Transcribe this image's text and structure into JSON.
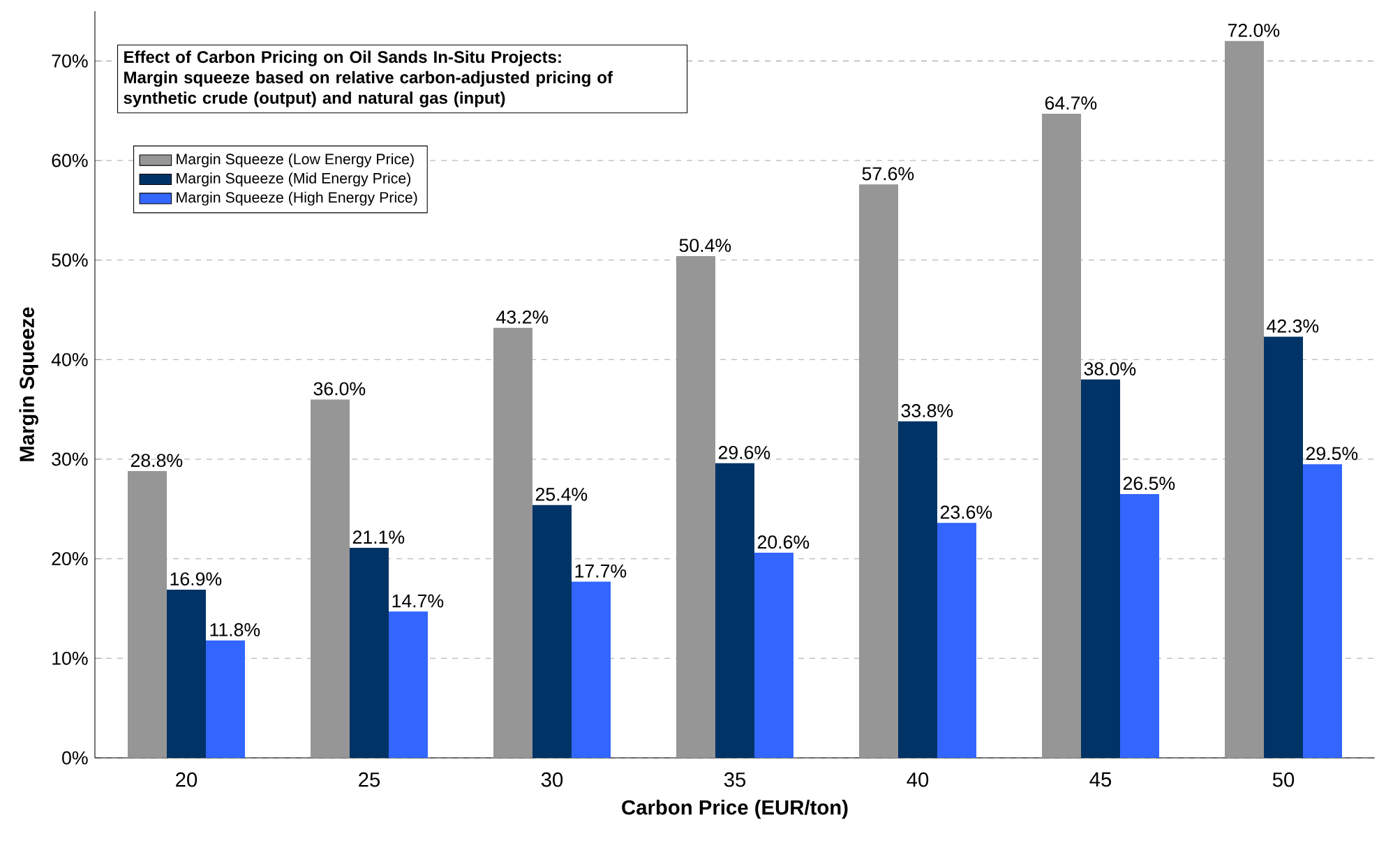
{
  "chart_data": {
    "type": "bar",
    "title": "Effect of Carbon Pricing on Oil Sands In-Situ Projects:",
    "subtitle": "Margin squeeze based on relative carbon-adjusted pricing of synthetic crude (output) and natural gas (input)",
    "xlabel": "Carbon Price (EUR/ton)",
    "ylabel": "Margin Squeeze",
    "categories": [
      "20",
      "25",
      "30",
      "35",
      "40",
      "45",
      "50"
    ],
    "series": [
      {
        "name": "Margin Squeeze (Low Energy Price)",
        "color": "#969696",
        "values": [
          28.8,
          36.0,
          43.2,
          50.4,
          57.6,
          64.7,
          72.0
        ],
        "value_labels": [
          "28.8%",
          "36.0%",
          "43.2%",
          "50.4%",
          "57.6%",
          "64.7%",
          "72.0%"
        ]
      },
      {
        "name": "Margin Squeeze (Mid Energy Price)",
        "color": "#003366",
        "values": [
          16.9,
          21.1,
          25.4,
          29.6,
          33.8,
          38.0,
          42.3
        ],
        "value_labels": [
          "16.9%",
          "21.1%",
          "25.4%",
          "29.6%",
          "33.8%",
          "38.0%",
          "42.3%"
        ]
      },
      {
        "name": "Margin Squeeze (High Energy Price)",
        "color": "#3366ff",
        "values": [
          11.8,
          14.7,
          17.7,
          20.6,
          23.6,
          26.5,
          29.5
        ],
        "value_labels": [
          "11.8%",
          "14.7%",
          "17.7%",
          "20.6%",
          "23.6%",
          "26.5%",
          "29.5%"
        ]
      }
    ],
    "ylim": [
      0,
      75
    ],
    "yticks": [
      {
        "value": 0,
        "label": "0%"
      },
      {
        "value": 10,
        "label": "10%"
      },
      {
        "value": 20,
        "label": "20%"
      },
      {
        "value": 30,
        "label": "30%"
      },
      {
        "value": 40,
        "label": "40%"
      },
      {
        "value": 50,
        "label": "50%"
      },
      {
        "value": 60,
        "label": "60%"
      },
      {
        "value": 70,
        "label": "70%"
      }
    ],
    "grid": "y",
    "legend": "top left"
  }
}
